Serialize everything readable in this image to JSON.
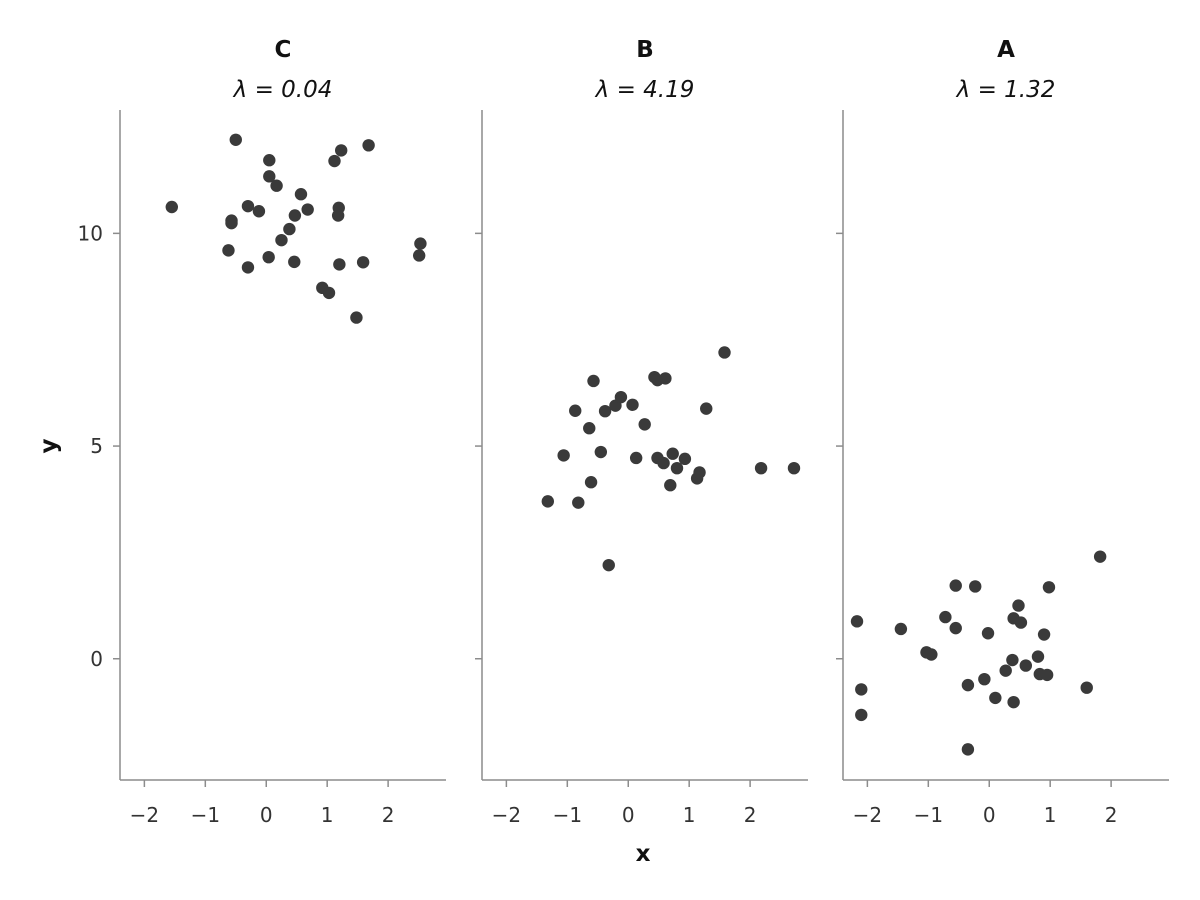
{
  "chart_data": {
    "type": "scatter",
    "xlabel": "x",
    "ylabel": "y",
    "xlim": [
      -2.4,
      2.95
    ],
    "ylim": [
      -2.85,
      12.9
    ],
    "x_ticks": [
      -2,
      -1,
      0,
      1,
      2
    ],
    "x_tick_labels": [
      "−2",
      "−1",
      "0",
      "1",
      "2"
    ],
    "y_ticks": [
      0,
      5,
      10
    ],
    "y_tick_labels": [
      "0",
      "5",
      "10"
    ],
    "grid": false,
    "point_color": "#3a3a3a",
    "panels": [
      {
        "title": "C",
        "subtitle": "λ = 0.04",
        "points": [
          {
            "x": -1.55,
            "y": 10.62
          },
          {
            "x": -0.5,
            "y": 12.2
          },
          {
            "x": 0.05,
            "y": 11.72
          },
          {
            "x": 0.05,
            "y": 11.34
          },
          {
            "x": 0.17,
            "y": 11.12
          },
          {
            "x": -0.3,
            "y": 10.64
          },
          {
            "x": -0.57,
            "y": 10.3
          },
          {
            "x": -0.57,
            "y": 10.24
          },
          {
            "x": -0.12,
            "y": 10.52
          },
          {
            "x": -0.62,
            "y": 9.6
          },
          {
            "x": -0.3,
            "y": 9.2
          },
          {
            "x": 0.04,
            "y": 9.44
          },
          {
            "x": 0.25,
            "y": 9.84
          },
          {
            "x": 0.38,
            "y": 10.1
          },
          {
            "x": 0.47,
            "y": 10.42
          },
          {
            "x": 0.57,
            "y": 10.92
          },
          {
            "x": 0.68,
            "y": 10.56
          },
          {
            "x": 0.46,
            "y": 9.33
          },
          {
            "x": 1.12,
            "y": 11.7
          },
          {
            "x": 1.23,
            "y": 11.95
          },
          {
            "x": 1.68,
            "y": 12.07
          },
          {
            "x": 1.19,
            "y": 10.6
          },
          {
            "x": 1.18,
            "y": 10.42
          },
          {
            "x": 1.2,
            "y": 9.27
          },
          {
            "x": 0.92,
            "y": 8.72
          },
          {
            "x": 1.03,
            "y": 8.6
          },
          {
            "x": 1.48,
            "y": 8.02
          },
          {
            "x": 1.59,
            "y": 9.32
          },
          {
            "x": 2.53,
            "y": 9.76
          },
          {
            "x": 2.51,
            "y": 9.48
          }
        ]
      },
      {
        "title": "B",
        "subtitle": "λ = 4.19",
        "points": [
          {
            "x": -1.32,
            "y": 3.7
          },
          {
            "x": -0.82,
            "y": 3.67
          },
          {
            "x": -1.06,
            "y": 4.78
          },
          {
            "x": -0.87,
            "y": 5.83
          },
          {
            "x": -0.64,
            "y": 5.42
          },
          {
            "x": -0.57,
            "y": 6.53
          },
          {
            "x": -0.45,
            "y": 4.86
          },
          {
            "x": -0.38,
            "y": 5.82
          },
          {
            "x": -0.21,
            "y": 5.95
          },
          {
            "x": -0.12,
            "y": 6.15
          },
          {
            "x": 0.07,
            "y": 5.97
          },
          {
            "x": 0.13,
            "y": 4.72
          },
          {
            "x": -0.32,
            "y": 2.2
          },
          {
            "x": -0.61,
            "y": 4.15
          },
          {
            "x": 0.27,
            "y": 5.51
          },
          {
            "x": 0.43,
            "y": 6.62
          },
          {
            "x": 0.48,
            "y": 6.55
          },
          {
            "x": 0.61,
            "y": 6.59
          },
          {
            "x": 0.48,
            "y": 4.72
          },
          {
            "x": 0.58,
            "y": 4.6
          },
          {
            "x": 0.73,
            "y": 4.82
          },
          {
            "x": 0.69,
            "y": 4.08
          },
          {
            "x": 0.8,
            "y": 4.48
          },
          {
            "x": 0.93,
            "y": 4.7
          },
          {
            "x": 1.13,
            "y": 4.24
          },
          {
            "x": 1.17,
            "y": 4.38
          },
          {
            "x": 1.28,
            "y": 5.88
          },
          {
            "x": 1.58,
            "y": 7.2
          },
          {
            "x": 2.18,
            "y": 4.48
          },
          {
            "x": 2.72,
            "y": 4.48
          }
        ]
      },
      {
        "title": "A",
        "subtitle": "λ = 1.32",
        "points": [
          {
            "x": -2.17,
            "y": 0.88
          },
          {
            "x": -2.1,
            "y": -0.72
          },
          {
            "x": -2.1,
            "y": -1.32
          },
          {
            "x": -1.45,
            "y": 0.7
          },
          {
            "x": -1.03,
            "y": 0.15
          },
          {
            "x": -0.95,
            "y": 0.1
          },
          {
            "x": -0.72,
            "y": 0.98
          },
          {
            "x": -0.55,
            "y": 1.72
          },
          {
            "x": -0.55,
            "y": 0.72
          },
          {
            "x": -0.35,
            "y": -0.62
          },
          {
            "x": -0.35,
            "y": -2.13
          },
          {
            "x": -0.23,
            "y": 1.7
          },
          {
            "x": -0.08,
            "y": -0.48
          },
          {
            "x": -0.02,
            "y": 0.6
          },
          {
            "x": 0.1,
            "y": -0.92
          },
          {
            "x": 0.27,
            "y": -0.28
          },
          {
            "x": 0.38,
            "y": -0.03
          },
          {
            "x": 0.4,
            "y": -1.02
          },
          {
            "x": 0.4,
            "y": 0.95
          },
          {
            "x": 0.48,
            "y": 1.25
          },
          {
            "x": 0.52,
            "y": 0.85
          },
          {
            "x": 0.6,
            "y": -0.16
          },
          {
            "x": 0.8,
            "y": 0.05
          },
          {
            "x": 0.83,
            "y": -0.36
          },
          {
            "x": 0.9,
            "y": 0.57
          },
          {
            "x": 0.95,
            "y": -0.38
          },
          {
            "x": 0.98,
            "y": 1.68
          },
          {
            "x": 1.6,
            "y": -0.68
          },
          {
            "x": 1.82,
            "y": 2.4
          }
        ]
      }
    ]
  }
}
